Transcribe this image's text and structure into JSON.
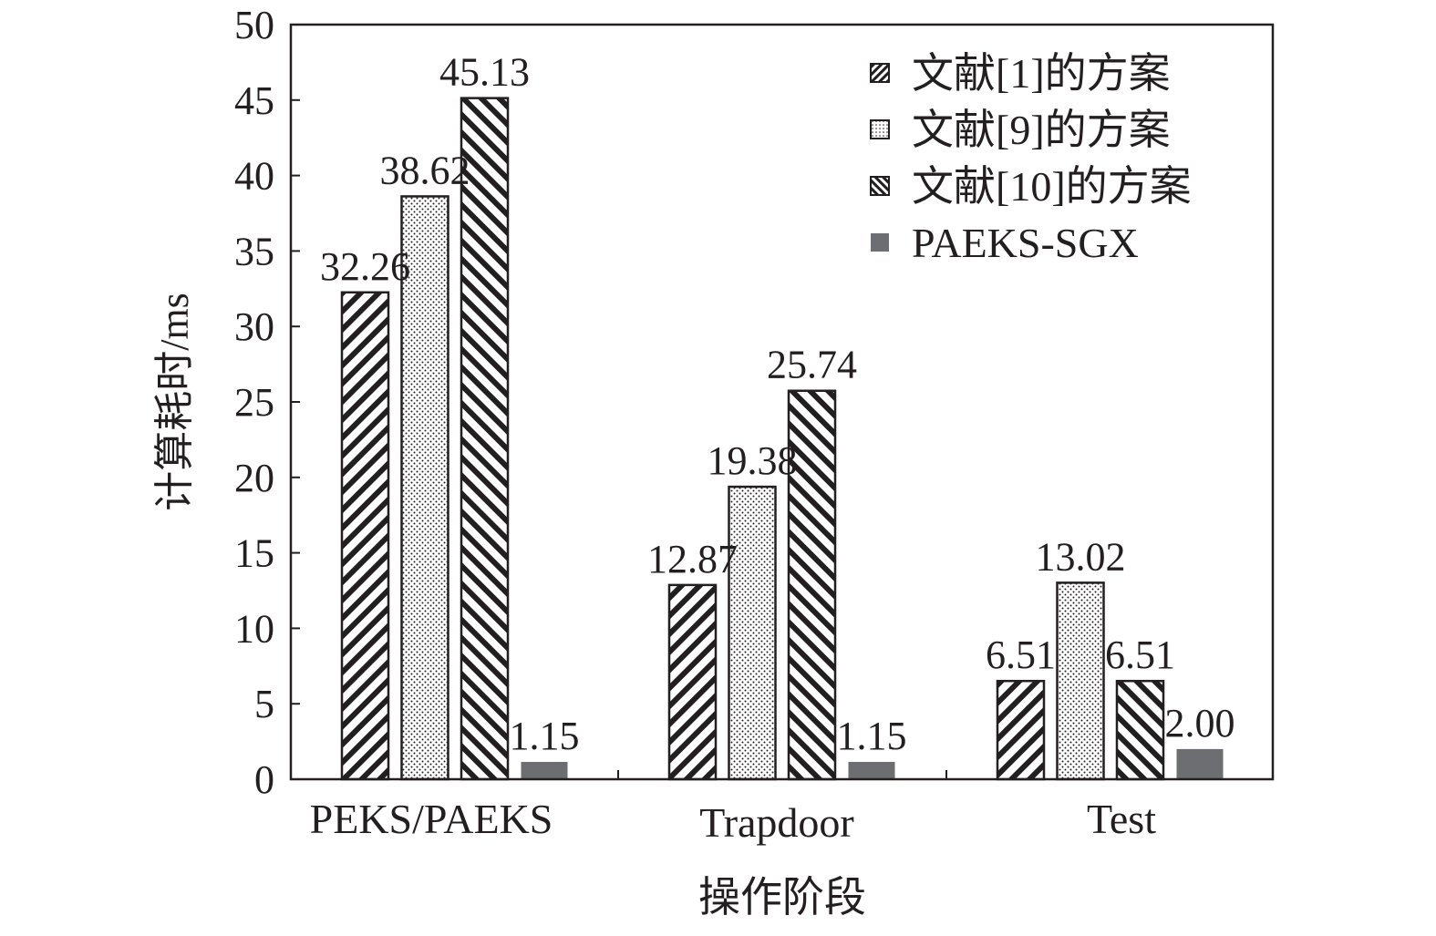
{
  "chart_data": {
    "type": "bar",
    "title": "",
    "xlabel": "操作阶段",
    "ylabel": "计算耗时/ms",
    "ylim": [
      0,
      50
    ],
    "yticks": [
      "0",
      "5",
      "10",
      "15",
      "20",
      "25",
      "30",
      "35",
      "40",
      "45",
      "50"
    ],
    "categories": [
      "PEKS/PAEKS",
      "Trapdoor",
      "Test"
    ],
    "series": [
      {
        "name": "文献[1]的方案",
        "pattern": "diagonal-hatch",
        "values": [
          32.26,
          12.87,
          6.51
        ],
        "labels": [
          "32.26",
          "12.87",
          "6.51"
        ]
      },
      {
        "name": "文献[9]的方案",
        "pattern": "dots",
        "values": [
          38.62,
          19.38,
          13.02
        ],
        "labels": [
          "38.62",
          "19.38",
          "13.02"
        ]
      },
      {
        "name": "文献[10]的方案",
        "pattern": "back-diagonal-hatch",
        "values": [
          45.13,
          25.74,
          6.51
        ],
        "labels": [
          "45.13",
          "25.74",
          "6.51"
        ]
      },
      {
        "name": "PAEKS-SGX",
        "pattern": "solid",
        "color": "#6d6e71",
        "values": [
          1.15,
          1.15,
          2.0
        ],
        "labels": [
          "1.15",
          "1.15",
          "2.00"
        ]
      }
    ],
    "legend_position": "top-right",
    "grid": false
  }
}
